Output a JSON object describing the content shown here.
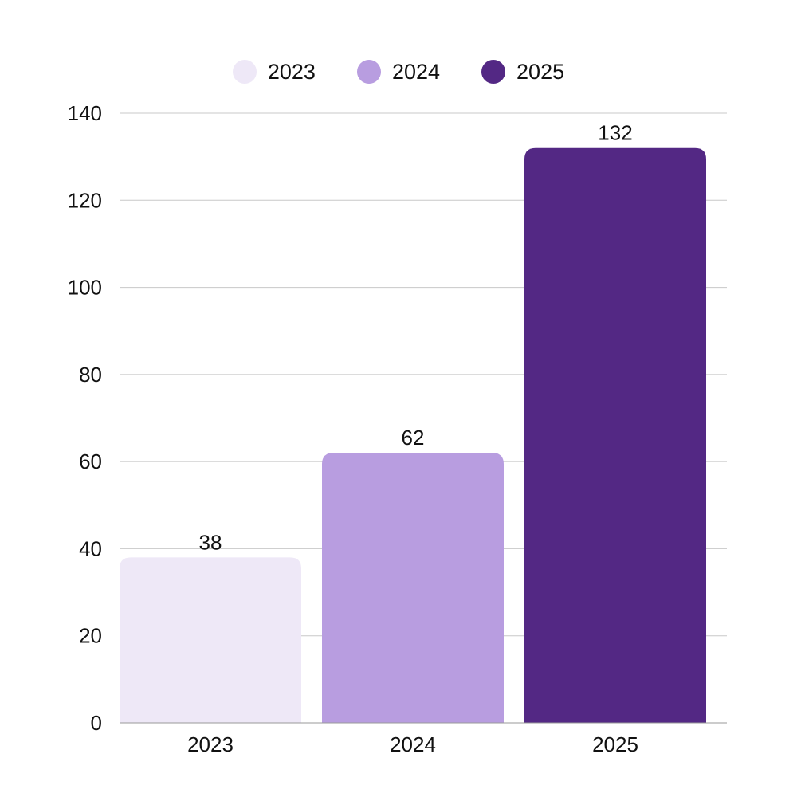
{
  "chart_data": {
    "type": "bar",
    "categories": [
      "2023",
      "2024",
      "2025"
    ],
    "values": [
      38,
      62,
      132
    ],
    "colors": [
      "#eee8f7",
      "#b89de0",
      "#532884"
    ],
    "legend": {
      "placement": "top-center",
      "entries": [
        "2023",
        "2024",
        "2025"
      ]
    },
    "ylim": [
      0,
      140
    ],
    "yticks": [
      0,
      20,
      40,
      60,
      80,
      100,
      120,
      140
    ],
    "grid": true,
    "data_labels": [
      "38",
      "62",
      "132"
    ],
    "title": "",
    "xlabel": "",
    "ylabel": ""
  }
}
